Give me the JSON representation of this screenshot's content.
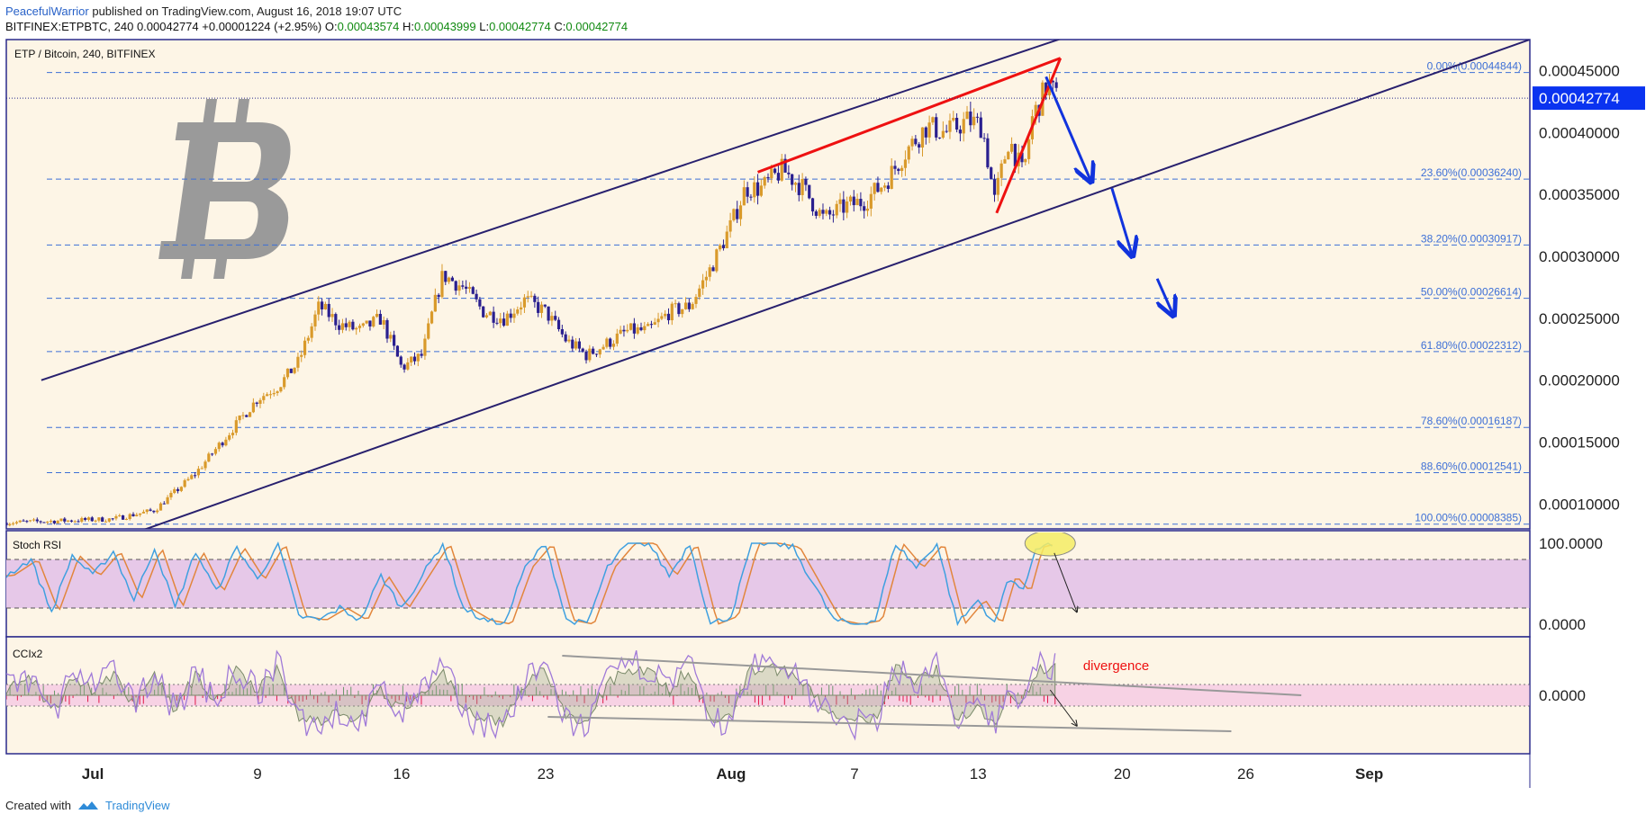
{
  "header": {
    "author": "PeacefulWarrior",
    "published": "published on TradingView.com, August 16, 2018 19:07 UTC",
    "symbol": "BITFINEX:ETPBTC, 240",
    "last": "0.00042774",
    "change": "+0.00001224 (+2.95%)",
    "open_label": "O:",
    "open": "0.00043574",
    "high_label": "H:",
    "high": "0.00043999",
    "low_label": "L:",
    "low": "0.00042774",
    "close_label": "C:",
    "close": "0.00042774"
  },
  "footer": {
    "created_with": "Created with",
    "brand": "TradingView"
  },
  "colors": {
    "pane_bg": "#fdf5e6",
    "border": "#2a2a8c",
    "channel": "#28206e",
    "fib": "#3d6fd6",
    "wedge": "#ee1111",
    "arrow": "#1133dd",
    "bull": "#d99a2b",
    "bear": "#2a1f8f",
    "stoch_band": "#e6c8e8",
    "stoch_k": "#3fa0e0",
    "stoch_d": "#e2863c",
    "cci_band": "#f7d2e4",
    "cci_hist": "#e01848",
    "divergence": "#ee1111",
    "price_label_bg": "#0a33f0"
  },
  "chart_data": {
    "type": "candlestick",
    "title": "ETP / Bitcoin, 240, BITFINEX",
    "ylim": [
      8e-05,
      0.000475
    ],
    "y_ticks": [
      "0.00045000",
      "0.00040000",
      "0.00035000",
      "0.00030000",
      "0.00025000",
      "0.00020000",
      "0.00015000",
      "0.00010000"
    ],
    "y_tick_values": [
      0.00045,
      0.0004,
      0.00035,
      0.0003,
      0.00025,
      0.0002,
      0.00015,
      0.0001
    ],
    "last_price_label": "0.00042774",
    "last_price": 0.00042774,
    "x_ticks": [
      {
        "label": "Jul",
        "day": 0
      },
      {
        "label": "9",
        "day": 8
      },
      {
        "label": "16",
        "day": 15
      },
      {
        "label": "23",
        "day": 22
      },
      {
        "label": "Aug",
        "day": 31
      },
      {
        "label": "7",
        "day": 37
      },
      {
        "label": "13",
        "day": 43
      },
      {
        "label": "20",
        "day": 50
      },
      {
        "label": "26",
        "day": 56
      },
      {
        "label": "Sep",
        "day": 62
      }
    ],
    "x_range_days": [
      -4.2,
      69.8
    ],
    "price_anchors": [
      [
        -4.2,
        8.5e-05
      ],
      [
        1,
        8.8e-05
      ],
      [
        3,
        9.5e-05
      ],
      [
        5,
        0.000125
      ],
      [
        7,
        0.000165
      ],
      [
        8,
        0.000185
      ],
      [
        9,
        0.000195
      ],
      [
        10,
        0.000215
      ],
      [
        11,
        0.00026
      ],
      [
        12,
        0.000245
      ],
      [
        13,
        0.00024
      ],
      [
        14,
        0.00025
      ],
      [
        15,
        0.00021
      ],
      [
        16,
        0.00022
      ],
      [
        16.5,
        0.000255
      ],
      [
        17,
        0.000285
      ],
      [
        18,
        0.000275
      ],
      [
        19,
        0.000255
      ],
      [
        20,
        0.00025
      ],
      [
        21,
        0.000265
      ],
      [
        22,
        0.000255
      ],
      [
        23,
        0.000232
      ],
      [
        24,
        0.00022
      ],
      [
        25,
        0.00023
      ],
      [
        26,
        0.00024
      ],
      [
        27,
        0.00024
      ],
      [
        28,
        0.000255
      ],
      [
        29,
        0.00026
      ],
      [
        30,
        0.00029
      ],
      [
        31,
        0.000325
      ],
      [
        31.7,
        0.000355
      ],
      [
        32.5,
        0.000355
      ],
      [
        33.5,
        0.00037
      ],
      [
        34.5,
        0.000355
      ],
      [
        35.5,
        0.00033
      ],
      [
        36.5,
        0.00034
      ],
      [
        37.5,
        0.000345
      ],
      [
        38.5,
        0.00036
      ],
      [
        39.5,
        0.000385
      ],
      [
        40.5,
        0.000405
      ],
      [
        41.5,
        0.0004
      ],
      [
        42.5,
        0.00041
      ],
      [
        43.2,
        0.000405
      ],
      [
        43.8,
        0.000345
      ],
      [
        44.5,
        0.000395
      ],
      [
        45.2,
        0.000365
      ],
      [
        45.6,
        0.00041
      ],
      [
        46.4,
        0.00044
      ],
      [
        46.8,
        0.000428
      ]
    ],
    "fibonacci": [
      {
        "label": "0.00%(0.00044844)",
        "value": 0.00044844
      },
      {
        "label": "23.60%(0.00036240)",
        "value": 0.0003624
      },
      {
        "label": "38.20%(0.00030917)",
        "value": 0.00030917
      },
      {
        "label": "50.00%(0.00026614)",
        "value": 0.00026614
      },
      {
        "label": "61.80%(0.00022312)",
        "value": 0.00022312
      },
      {
        "label": "78.60%(0.00016187)",
        "value": 0.00016187
      },
      {
        "label": "88.60%(0.00012541)",
        "value": 0.00012541
      },
      {
        "label": "100.00%(0.00008385)",
        "value": 8.385e-05
      }
    ],
    "channel_upper": [
      [
        -2.5,
        0.0002
      ],
      [
        47.8,
        0.00048
      ]
    ],
    "channel_lower": [
      [
        -2.5,
        5e-05
      ],
      [
        69.8,
        0.000475
      ]
    ],
    "wedge_upper": [
      [
        32.3,
        0.000368
      ],
      [
        47,
        0.00046
      ]
    ],
    "wedge_lower": [
      [
        43.9,
        0.000335
      ],
      [
        47,
        0.00046
      ]
    ],
    "arrows": [
      [
        [
          46.3,
          0.000445
        ],
        [
          48.5,
          0.00036
        ]
      ],
      [
        [
          49.5,
          0.000355
        ],
        [
          50.5,
          0.0003
        ]
      ],
      [
        [
          51.7,
          0.000282
        ],
        [
          52.5,
          0.000252
        ]
      ]
    ],
    "stoch_rsi": {
      "name": "Stoch RSI",
      "ticks": [
        "100.0000",
        "0.0000"
      ],
      "range": [
        0,
        100
      ],
      "band": [
        20,
        80
      ],
      "k_anchors": [
        [
          -4.2,
          60
        ],
        [
          -3,
          80
        ],
        [
          -2,
          15
        ],
        [
          -1,
          85
        ],
        [
          0,
          60
        ],
        [
          1,
          90
        ],
        [
          2,
          30
        ],
        [
          3,
          95
        ],
        [
          4,
          20
        ],
        [
          5,
          90
        ],
        [
          6,
          40
        ],
        [
          7,
          95
        ],
        [
          8,
          55
        ],
        [
          9,
          100
        ],
        [
          10,
          10
        ],
        [
          11,
          5
        ],
        [
          12,
          20
        ],
        [
          13,
          5
        ],
        [
          14,
          60
        ],
        [
          15,
          20
        ],
        [
          16,
          60
        ],
        [
          17,
          100
        ],
        [
          18,
          20
        ],
        [
          19,
          5
        ],
        [
          20,
          0
        ],
        [
          21,
          70
        ],
        [
          22,
          100
        ],
        [
          23,
          5
        ],
        [
          24,
          0
        ],
        [
          25,
          70
        ],
        [
          26,
          100
        ],
        [
          27,
          100
        ],
        [
          28,
          60
        ],
        [
          29,
          100
        ],
        [
          30,
          0
        ],
        [
          31,
          10
        ],
        [
          32,
          100
        ],
        [
          33,
          100
        ],
        [
          34,
          95
        ],
        [
          35,
          50
        ],
        [
          36,
          5
        ],
        [
          37,
          0
        ],
        [
          38,
          5
        ],
        [
          39,
          100
        ],
        [
          40,
          70
        ],
        [
          41,
          100
        ],
        [
          42,
          0
        ],
        [
          43,
          30
        ],
        [
          43.8,
          0
        ],
        [
          44.5,
          60
        ],
        [
          45.2,
          40
        ],
        [
          45.8,
          95
        ],
        [
          46.5,
          100
        ],
        [
          46.8,
          95
        ]
      ],
      "ellipse_center": [
        46.5,
        100
      ],
      "arrow": [
        [
          46.7,
          88
        ],
        [
          47.8,
          15
        ]
      ]
    },
    "cci": {
      "name": "CCIx2",
      "ticks": [
        "0.0000"
      ],
      "range": [
        -1,
        1
      ],
      "band": [
        -0.3,
        0.3
      ],
      "divergence_label": "divergence",
      "divergence_pos": [
        48.1,
        0.7
      ],
      "upper_line": [
        [
          22.8,
          1.1
        ],
        [
          58.7,
          0
        ]
      ],
      "lower_line": [
        [
          22.1,
          -0.6
        ],
        [
          55.3,
          -1
        ]
      ],
      "arrow": [
        [
          46.5,
          0.15
        ],
        [
          47.8,
          -0.85
        ]
      ]
    }
  }
}
